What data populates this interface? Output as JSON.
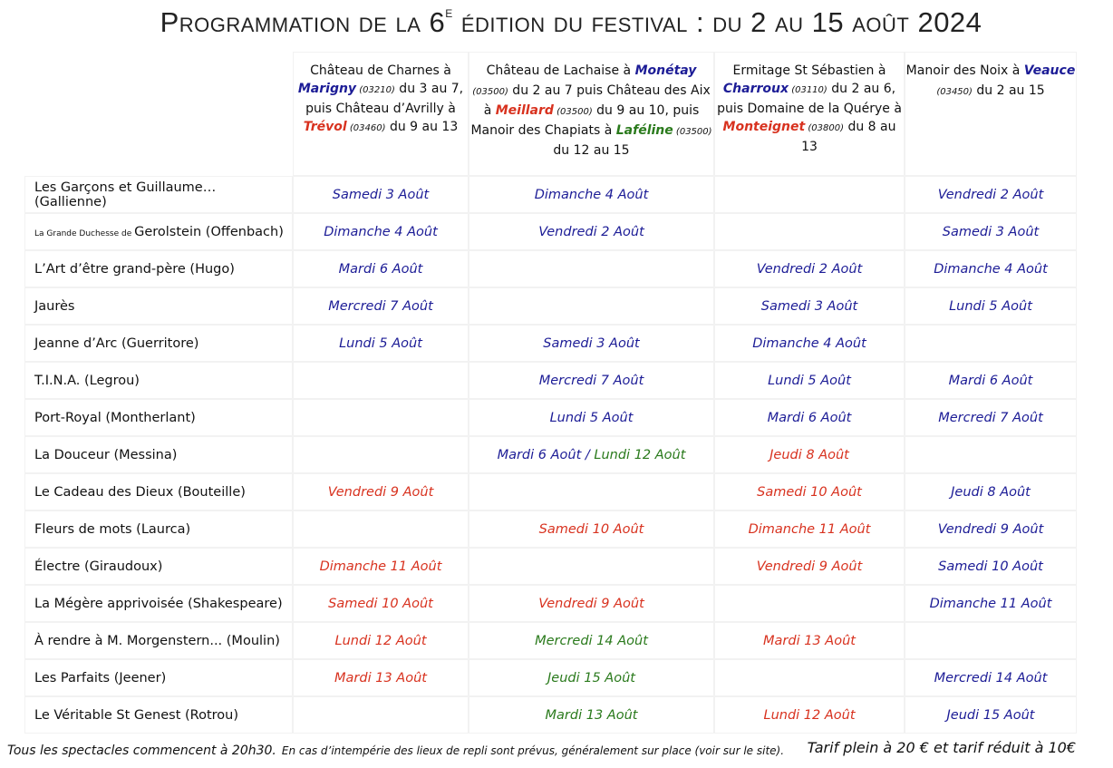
{
  "title": [
    {
      "text": "Programmation de la 6",
      "style": "plain"
    },
    {
      "text": "e",
      "style": "sup"
    },
    {
      "text": " édition du festival : du 2 au 15 août 2024",
      "style": "plain"
    }
  ],
  "table": {
    "columns": [
      [
        {
          "text": "Château de Charnes à ",
          "style": "plain"
        },
        {
          "text": "Marigny",
          "style": "place-blue"
        },
        {
          "text": " (03210)",
          "style": "code"
        },
        {
          "text": " du 3 au 7, puis Château d’Avrilly à ",
          "style": "plain"
        },
        {
          "text": "Trévol",
          "style": "place-red"
        },
        {
          "text": " (03460)",
          "style": "code"
        },
        {
          "text": " du 9 au 13",
          "style": "plain"
        }
      ],
      [
        {
          "text": "Château de Lachaise à ",
          "style": "plain"
        },
        {
          "text": "Monétay",
          "style": "place-blue"
        },
        {
          "text": " (03500)",
          "style": "code"
        },
        {
          "text": " du 2 au 7 puis Château des Aix à ",
          "style": "plain"
        },
        {
          "text": "Meillard",
          "style": "place-red"
        },
        {
          "text": " (03500)",
          "style": "code"
        },
        {
          "text": " du 9 au 10, puis Manoir des Chapiats à ",
          "style": "plain"
        },
        {
          "text": "Laféline",
          "style": "place-green"
        },
        {
          "text": " (03500)",
          "style": "code"
        },
        {
          "text": " du 12 au 15",
          "style": "plain"
        }
      ],
      [
        {
          "text": "Ermitage St Sébastien à ",
          "style": "plain"
        },
        {
          "text": "Charroux",
          "style": "place-blue"
        },
        {
          "text": " (03110)",
          "style": "code"
        },
        {
          "text": " du 2 au 6, puis Domaine de la Quérye à ",
          "style": "plain"
        },
        {
          "text": "Monteignet",
          "style": "place-red"
        },
        {
          "text": " (03800)",
          "style": "code"
        },
        {
          "text": " du 8 au 13",
          "style": "plain"
        }
      ],
      [
        {
          "text": "Manoir des Noix à ",
          "style": "plain"
        },
        {
          "text": "Veauce",
          "style": "place-blue"
        },
        {
          "text": " (03450)",
          "style": "code"
        },
        {
          "text": " du 2 au 15",
          "style": "plain"
        }
      ]
    ],
    "rows": [
      {
        "title": [
          {
            "text": "Les Garçons et Guillaume… (Gallienne)",
            "style": "plain"
          }
        ],
        "cells": [
          [
            {
              "text": "Samedi 3 Août",
              "style": "blue"
            }
          ],
          [
            {
              "text": "Dimanche 4 Août",
              "style": "blue"
            }
          ],
          null,
          [
            {
              "text": "Vendredi 2 Août",
              "style": "blue"
            }
          ]
        ]
      },
      {
        "title": [
          {
            "text": "La Grande Duchesse de ",
            "style": "small"
          },
          {
            "text": "Gerolstein (Offenbach)",
            "style": "plain"
          }
        ],
        "cells": [
          [
            {
              "text": "Dimanche 4 Août",
              "style": "blue"
            }
          ],
          [
            {
              "text": "Vendredi 2 Août",
              "style": "blue"
            }
          ],
          null,
          [
            {
              "text": "Samedi 3 Août",
              "style": "blue"
            }
          ]
        ]
      },
      {
        "title": [
          {
            "text": "L’Art d’être grand-père (Hugo)",
            "style": "plain"
          }
        ],
        "cells": [
          [
            {
              "text": "Mardi 6 Août",
              "style": "blue"
            }
          ],
          null,
          [
            {
              "text": "Vendredi 2 Août",
              "style": "blue"
            }
          ],
          [
            {
              "text": "Dimanche 4 Août",
              "style": "blue"
            }
          ]
        ]
      },
      {
        "title": [
          {
            "text": "Jaurès",
            "style": "plain"
          }
        ],
        "cells": [
          [
            {
              "text": "Mercredi 7 Août",
              "style": "blue"
            }
          ],
          null,
          [
            {
              "text": "Samedi 3 Août",
              "style": "blue"
            }
          ],
          [
            {
              "text": "Lundi 5 Août",
              "style": "blue"
            }
          ]
        ]
      },
      {
        "title": [
          {
            "text": "Jeanne d’Arc (Guerritore)",
            "style": "plain"
          }
        ],
        "cells": [
          [
            {
              "text": "Lundi 5 Août",
              "style": "blue"
            }
          ],
          [
            {
              "text": "Samedi 3 Août",
              "style": "blue"
            }
          ],
          [
            {
              "text": "Dimanche 4 Août",
              "style": "blue"
            }
          ],
          null
        ]
      },
      {
        "title": [
          {
            "text": "T.I.N.A. (Legrou)",
            "style": "plain"
          }
        ],
        "cells": [
          null,
          [
            {
              "text": "Mercredi 7 Août",
              "style": "blue"
            }
          ],
          [
            {
              "text": "Lundi 5 Août",
              "style": "blue"
            }
          ],
          [
            {
              "text": "Mardi 6 Août",
              "style": "blue"
            }
          ]
        ]
      },
      {
        "title": [
          {
            "text": "Port-Royal (Montherlant)",
            "style": "plain"
          }
        ],
        "cells": [
          null,
          [
            {
              "text": "Lundi 5 Août",
              "style": "blue"
            }
          ],
          [
            {
              "text": "Mardi 6 Août",
              "style": "blue"
            }
          ],
          [
            {
              "text": "Mercredi 7 Août",
              "style": "blue"
            }
          ]
        ]
      },
      {
        "title": [
          {
            "text": "La Douceur (Messina)",
            "style": "plain"
          }
        ],
        "cells": [
          null,
          [
            {
              "text": "Mardi 6 Août",
              "style": "blue"
            },
            {
              "text": " / ",
              "style": "blue"
            },
            {
              "text": "Lundi 12 Août",
              "style": "green"
            }
          ],
          [
            {
              "text": "Jeudi 8 Août",
              "style": "red"
            }
          ],
          null
        ]
      },
      {
        "title": [
          {
            "text": "Le Cadeau des Dieux (Bouteille)",
            "style": "plain"
          }
        ],
        "cells": [
          [
            {
              "text": "Vendredi 9 Août",
              "style": "red"
            }
          ],
          null,
          [
            {
              "text": "Samedi 10 Août",
              "style": "red"
            }
          ],
          [
            {
              "text": "Jeudi 8 Août",
              "style": "blue"
            }
          ]
        ]
      },
      {
        "title": [
          {
            "text": "Fleurs de mots (Laurca)",
            "style": "plain"
          }
        ],
        "cells": [
          null,
          [
            {
              "text": "Samedi 10 Août",
              "style": "red"
            }
          ],
          [
            {
              "text": "Dimanche 11 Août",
              "style": "red"
            }
          ],
          [
            {
              "text": "Vendredi 9 Août",
              "style": "blue"
            }
          ]
        ]
      },
      {
        "title": [
          {
            "text": "Électre (Giraudoux)",
            "style": "plain"
          }
        ],
        "cells": [
          [
            {
              "text": "Dimanche 11 Août",
              "style": "red"
            }
          ],
          null,
          [
            {
              "text": "Vendredi 9 Août",
              "style": "red"
            }
          ],
          [
            {
              "text": "Samedi 10 Août",
              "style": "blue"
            }
          ]
        ]
      },
      {
        "title": [
          {
            "text": "La Mégère apprivoisée (Shakespeare)",
            "style": "plain"
          }
        ],
        "cells": [
          [
            {
              "text": "Samedi 10 Août",
              "style": "red"
            }
          ],
          [
            {
              "text": "Vendredi 9 Août",
              "style": "red"
            }
          ],
          null,
          [
            {
              "text": "Dimanche 11 Août",
              "style": "blue"
            }
          ]
        ]
      },
      {
        "title": [
          {
            "text": "À rendre à M. Morgenstern... (Moulin)",
            "style": "plain"
          }
        ],
        "cells": [
          [
            {
              "text": "Lundi 12 Août",
              "style": "red"
            }
          ],
          [
            {
              "text": "Mercredi 14 Août",
              "style": "green"
            }
          ],
          [
            {
              "text": "Mardi 13 Août",
              "style": "red"
            }
          ],
          null
        ]
      },
      {
        "title": [
          {
            "text": "Les Parfaits (Jeener)",
            "style": "plain"
          }
        ],
        "cells": [
          [
            {
              "text": "Mardi 13 Août",
              "style": "red"
            }
          ],
          [
            {
              "text": "Jeudi 15 Août",
              "style": "green"
            }
          ],
          null,
          [
            {
              "text": "Mercredi 14 Août",
              "style": "blue"
            }
          ]
        ]
      },
      {
        "title": [
          {
            "text": "Le Véritable St Genest (Rotrou)",
            "style": "plain"
          }
        ],
        "cells": [
          null,
          [
            {
              "text": "Mardi 13 Août",
              "style": "green"
            }
          ],
          [
            {
              "text": "Lundi 12 Août",
              "style": "red"
            }
          ],
          [
            {
              "text": "Jeudi 15 Août",
              "style": "blue"
            }
          ]
        ]
      }
    ]
  },
  "footer": [
    {
      "text": "Tous les spectacles commencent à 20h30.",
      "style": "lead"
    },
    {
      "text": "En cas d’intempérie des lieux de repli sont prévus, généralement sur place (voir sur le site).",
      "style": "note"
    },
    {
      "text": "Tarif plein à 20 € et tarif réduit à 10€",
      "style": "price"
    }
  ]
}
